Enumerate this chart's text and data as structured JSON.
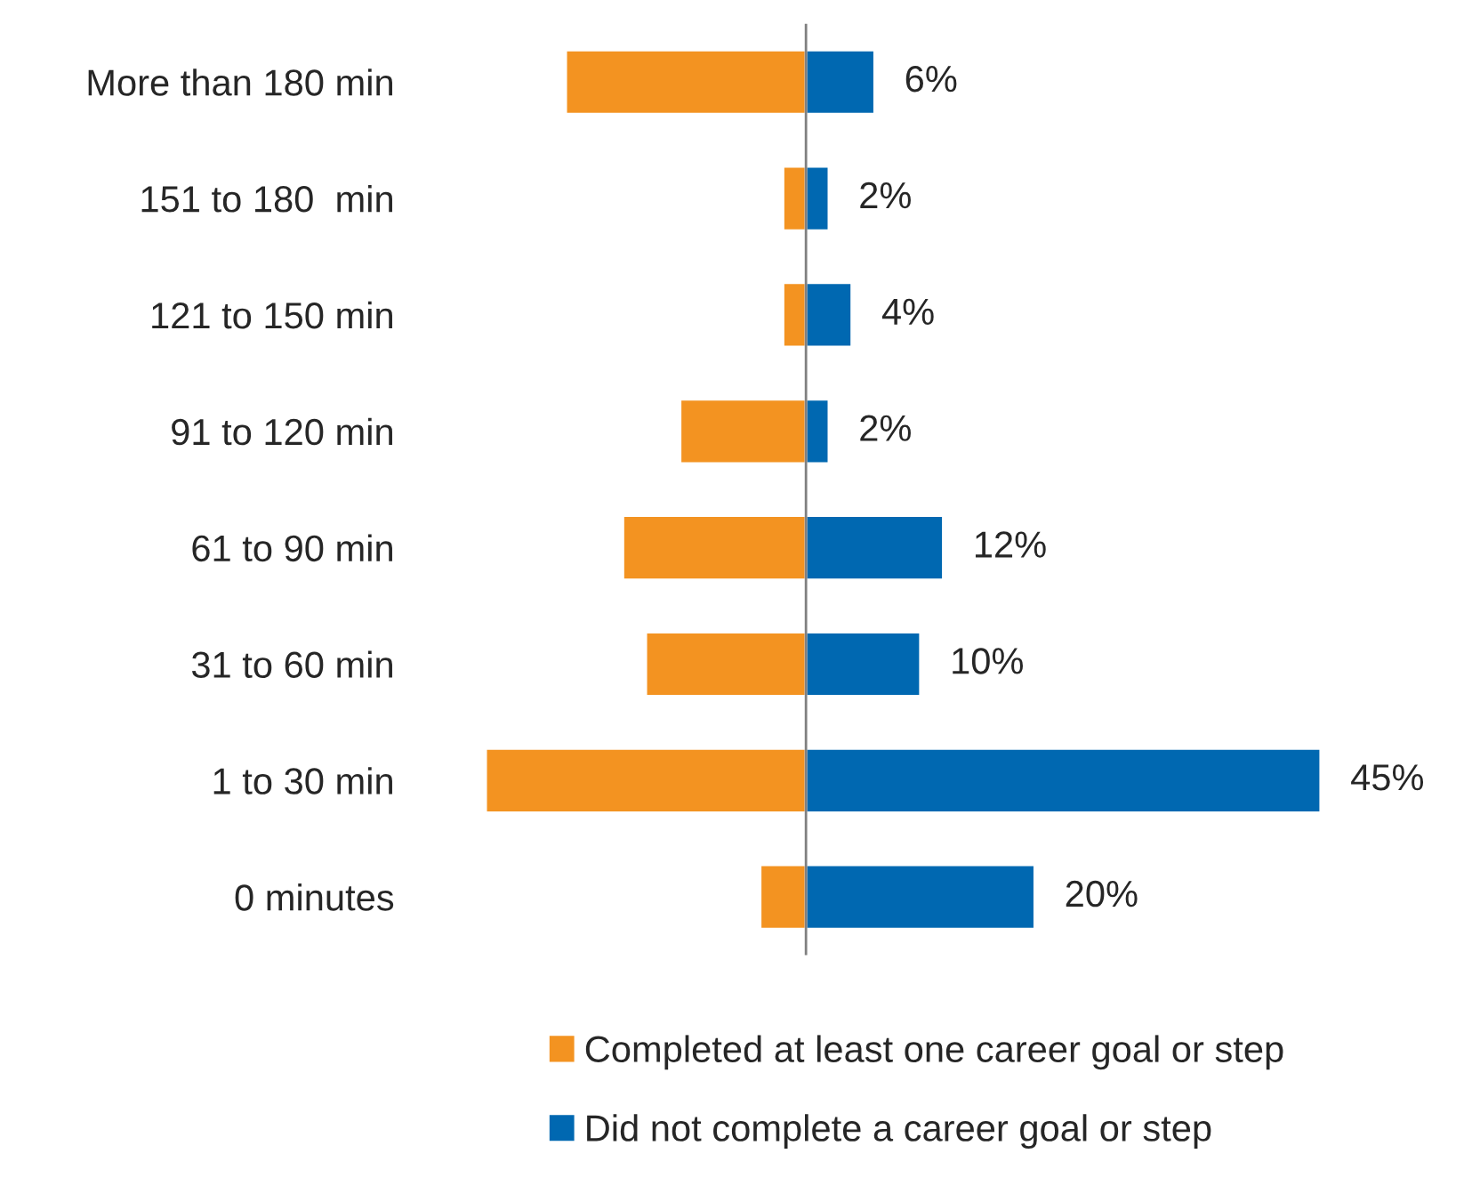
{
  "chart_data": {
    "type": "bar",
    "orientation": "horizontal",
    "categories": [
      "More than 180 min",
      "151 to 180  min",
      "121 to 150 min",
      "91 to 120 min",
      "61 to 90 min",
      "31 to 60 min",
      "1 to 30 min",
      "0 minutes"
    ],
    "series": [
      {
        "name": "Completed at least one career goal or step",
        "color": "#f39321",
        "values": [
          -21,
          -2,
          -2,
          -11,
          -16,
          -14,
          -28,
          -4
        ]
      },
      {
        "name": "Did not complete a career goal or step",
        "color": "#0068b1",
        "values": [
          6,
          2,
          4,
          2,
          12,
          10,
          45,
          20
        ],
        "value_labels": [
          "6%",
          "2%",
          "4%",
          "2%",
          "12%",
          "10%",
          "45%",
          "20%"
        ]
      }
    ],
    "ref_lines": [
      {
        "axis": "x",
        "value": 0,
        "color": "#808080"
      }
    ],
    "stacked": true,
    "grid": false,
    "legend": "bottom",
    "tick_labels": "y"
  }
}
